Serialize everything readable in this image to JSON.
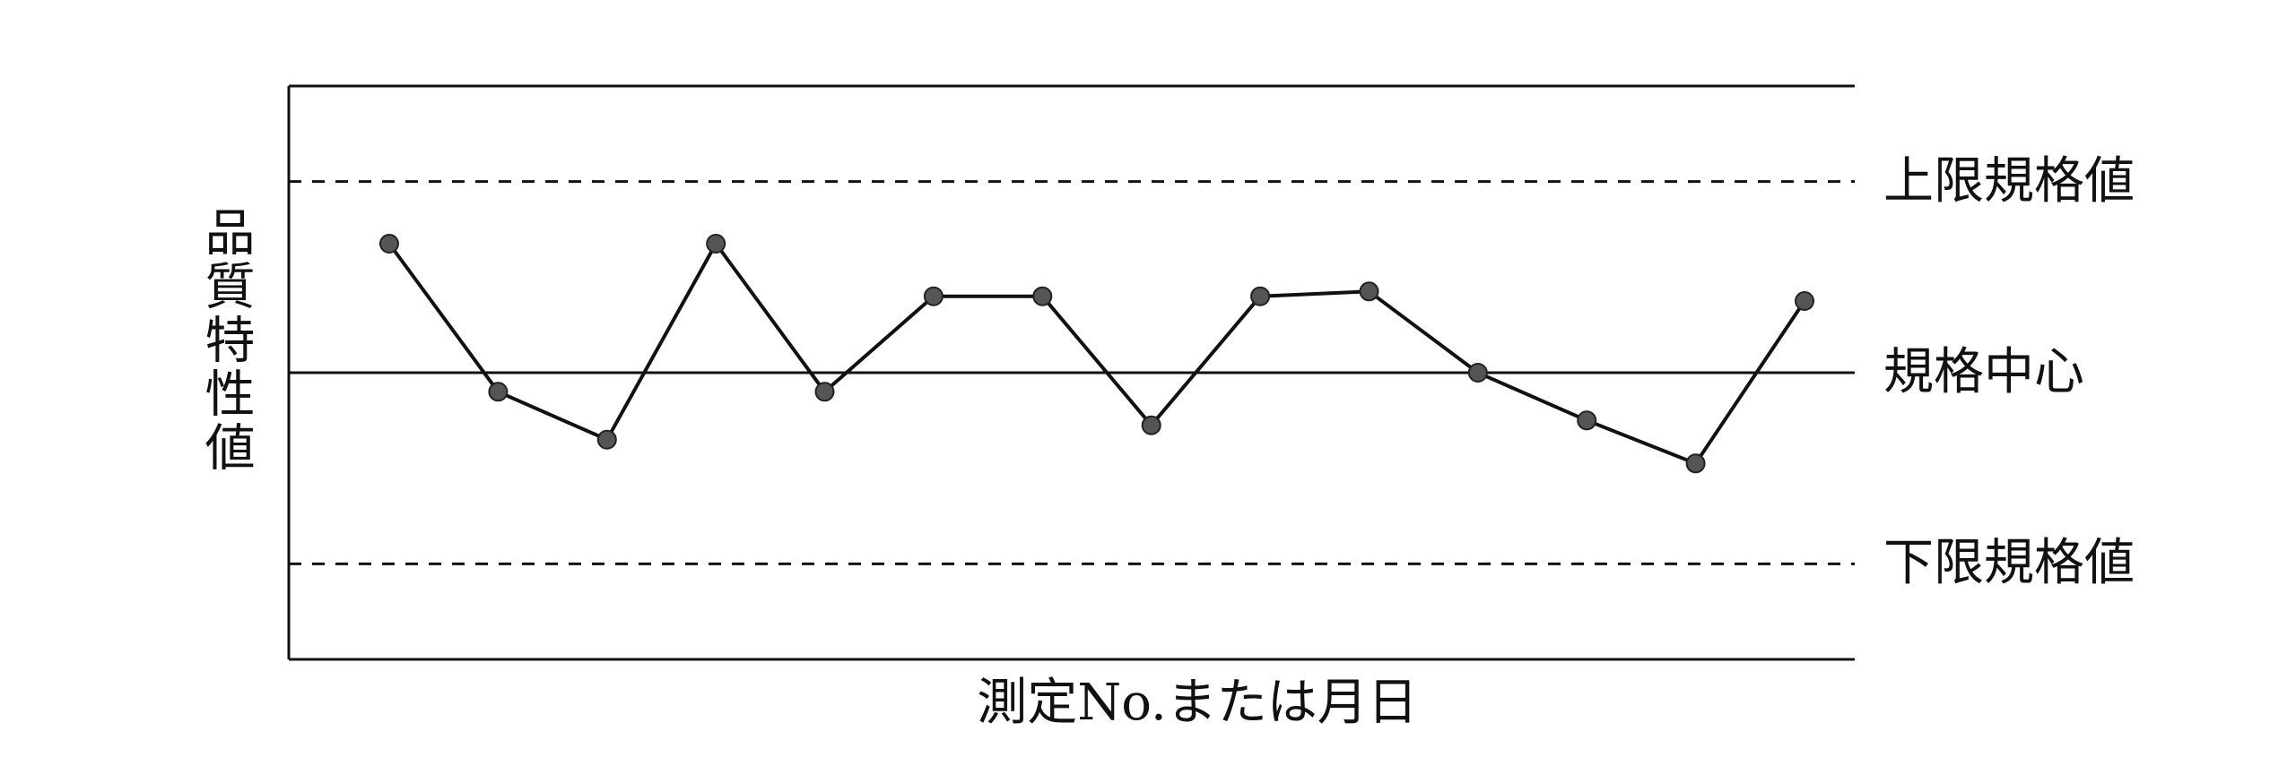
{
  "chart_data": {
    "type": "line",
    "title": "",
    "xlabel": "測定No.または月日",
    "ylabel": "品質特性値",
    "x": [
      1,
      2,
      3,
      4,
      5,
      6,
      7,
      8,
      9,
      10,
      11,
      12,
      13,
      14
    ],
    "values": [
      1.35,
      -0.2,
      -0.7,
      1.35,
      -0.2,
      0.8,
      0.8,
      -0.55,
      0.8,
      0.85,
      0.0,
      -0.5,
      -0.95,
      0.75
    ],
    "ylim": [
      -3.0,
      3.0
    ],
    "xlim": [
      0,
      15
    ],
    "reference_lines": [
      {
        "name": "上限規格値",
        "value": 2.0,
        "style": "dashed"
      },
      {
        "name": "規格中心",
        "value": 0.0,
        "style": "solid"
      },
      {
        "name": "下限規格値",
        "value": -2.0,
        "style": "dashed"
      }
    ],
    "grid": false,
    "legend": "none",
    "colors": {
      "line": "#111111",
      "marker": "#555555",
      "marker_edge": "#222222"
    }
  }
}
